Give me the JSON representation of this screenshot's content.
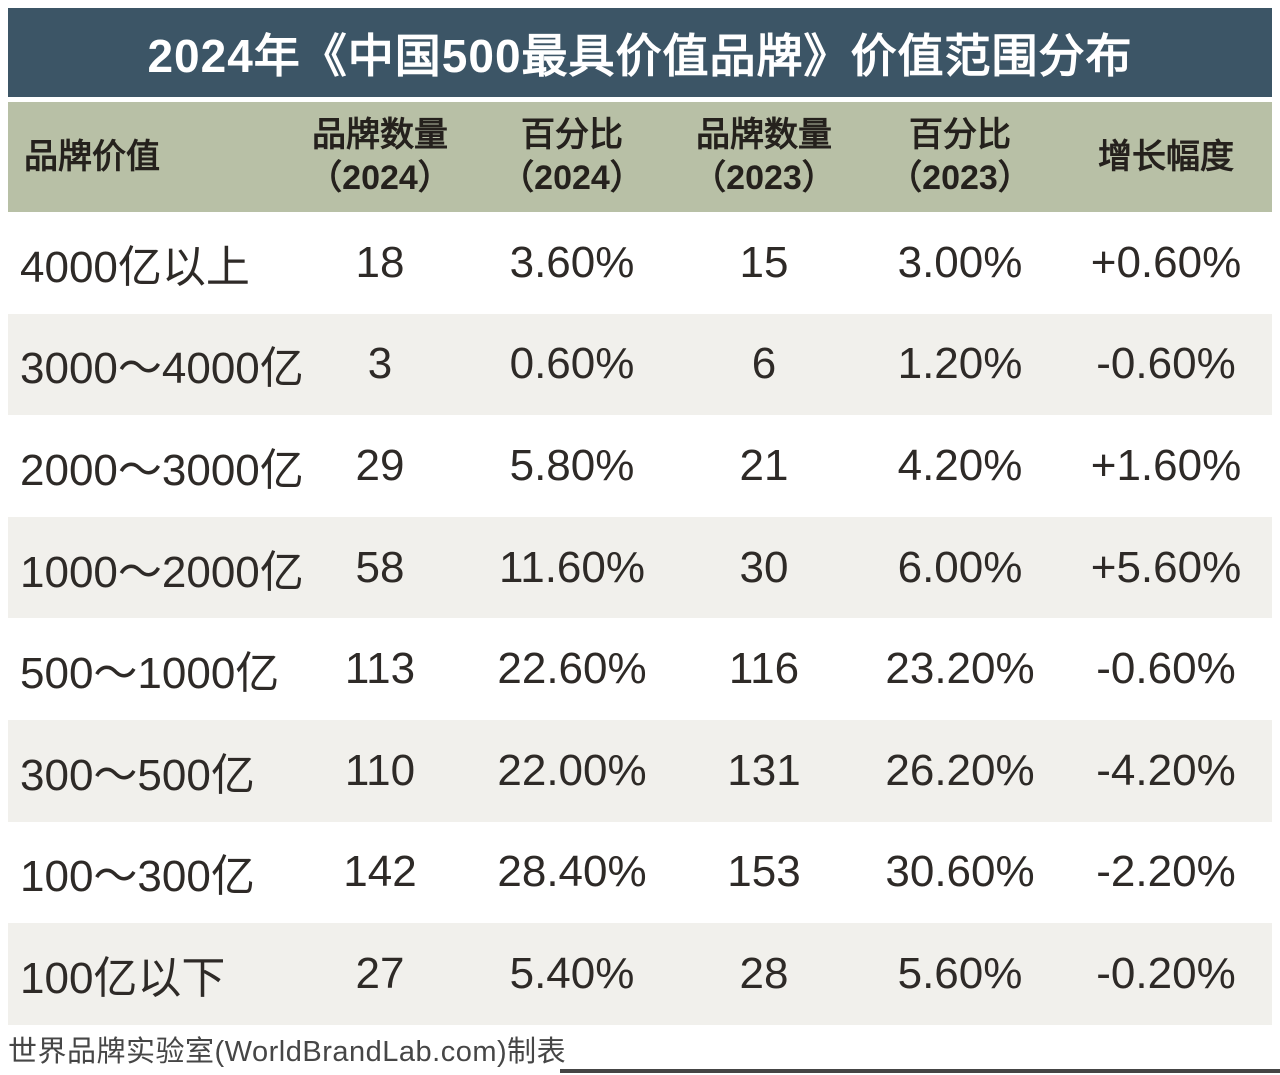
{
  "chart_data": {
    "type": "table",
    "title": "2024年《中国500最具价值品牌》价值范围分布",
    "columns": [
      "品牌价值",
      "品牌数量（2024）",
      "百分比（2024）",
      "品牌数量（2023）",
      "百分比（2023）",
      "增长幅度"
    ],
    "column_header_lines": [
      {
        "line1": "品牌价值",
        "line2": ""
      },
      {
        "line1": "品牌数量",
        "line2": "（2024）"
      },
      {
        "line1": "百分比",
        "line2": "（2024）"
      },
      {
        "line1": "品牌数量",
        "line2": "（2023）"
      },
      {
        "line1": "百分比",
        "line2": "（2023）"
      },
      {
        "line1": "增长幅度",
        "line2": ""
      }
    ],
    "rows": [
      [
        "4000亿以上",
        "18",
        "3.60%",
        "15",
        "3.00%",
        "+0.60%"
      ],
      [
        "3000～4000亿",
        "3",
        "0.60%",
        "6",
        "1.20%",
        "-0.60%"
      ],
      [
        "2000～3000亿",
        "29",
        "5.80%",
        "21",
        "4.20%",
        "+1.60%"
      ],
      [
        "1000～2000亿",
        "58",
        "11.60%",
        "30",
        "6.00%",
        "+5.60%"
      ],
      [
        "500～1000亿",
        "113",
        "22.60%",
        "116",
        "23.20%",
        "-0.60%"
      ],
      [
        "300～500亿",
        "110",
        "22.00%",
        "131",
        "26.20%",
        "-4.20%"
      ],
      [
        "100～300亿",
        "142",
        "28.40%",
        "153",
        "30.60%",
        "-2.20%"
      ],
      [
        "100亿以下",
        "27",
        "5.40%",
        "28",
        "5.60%",
        "-0.20%"
      ]
    ],
    "source": "世界品牌实验室(WorldBrandLab.com)制表"
  },
  "colors": {
    "title_bar_bg": "#3c5566",
    "title_text": "#ffffff",
    "header_bg": "#b8c0a6",
    "header_text": "#25211d",
    "row_bg": "#ffffff",
    "row_alt_bg": "#f1f0ec",
    "data_text": "#2e2a27",
    "source_text": "#464646"
  }
}
